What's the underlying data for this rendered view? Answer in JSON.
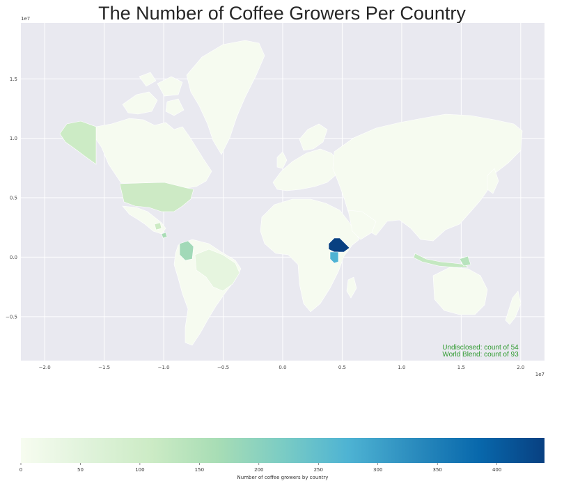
{
  "chart_data": {
    "type": "choropleth-map",
    "title": "The Number of Coffee Growers Per Country",
    "x_axis": {
      "ticks": [
        -2.0,
        -1.5,
        -1.0,
        -0.5,
        0.0,
        0.5,
        1.0,
        1.5,
        2.0
      ],
      "tick_labels": [
        "−2.0",
        "−1.5",
        "−1.0",
        "−0.5",
        "0.0",
        "0.5",
        "1.0",
        "1.5",
        "2.0"
      ],
      "exponent_label": "1e7",
      "xlim": [
        -2.2,
        2.2
      ]
    },
    "y_axis": {
      "ticks": [
        -0.5,
        0.0,
        0.5,
        1.0,
        1.5
      ],
      "tick_labels": [
        "−0.5",
        "0.0",
        "0.5",
        "1.0",
        "1.5"
      ],
      "exponent_label": "1e7",
      "ylim": [
        -0.87,
        1.97
      ]
    },
    "grid": true,
    "annotations": [
      "Undisclosed: count of 54",
      "World Blend: count of 93"
    ],
    "colorbar": {
      "label": "Number of coffee growers by country",
      "min": 0,
      "max": 440,
      "ticks": [
        0,
        50,
        100,
        150,
        200,
        250,
        300,
        350,
        400
      ],
      "colormap": "GnBu"
    },
    "countries": [
      {
        "name": "Ethiopia",
        "value": 440
      },
      {
        "name": "Kenya",
        "value": 250
      },
      {
        "name": "Colombia",
        "value": 140
      },
      {
        "name": "Costa Rica",
        "value": 120
      },
      {
        "name": "Indonesia",
        "value": 100
      },
      {
        "name": "Papua New Guinea",
        "value": 90
      },
      {
        "name": "United States",
        "value": 90
      },
      {
        "name": "Guatemala",
        "value": 70
      },
      {
        "name": "Brazil",
        "value": 40
      }
    ]
  },
  "colors": {
    "plot_background": "#e9e9f0",
    "grid": "#ffffff",
    "land_default": "#f6fbf0",
    "annotation": "#2e9a2e"
  }
}
